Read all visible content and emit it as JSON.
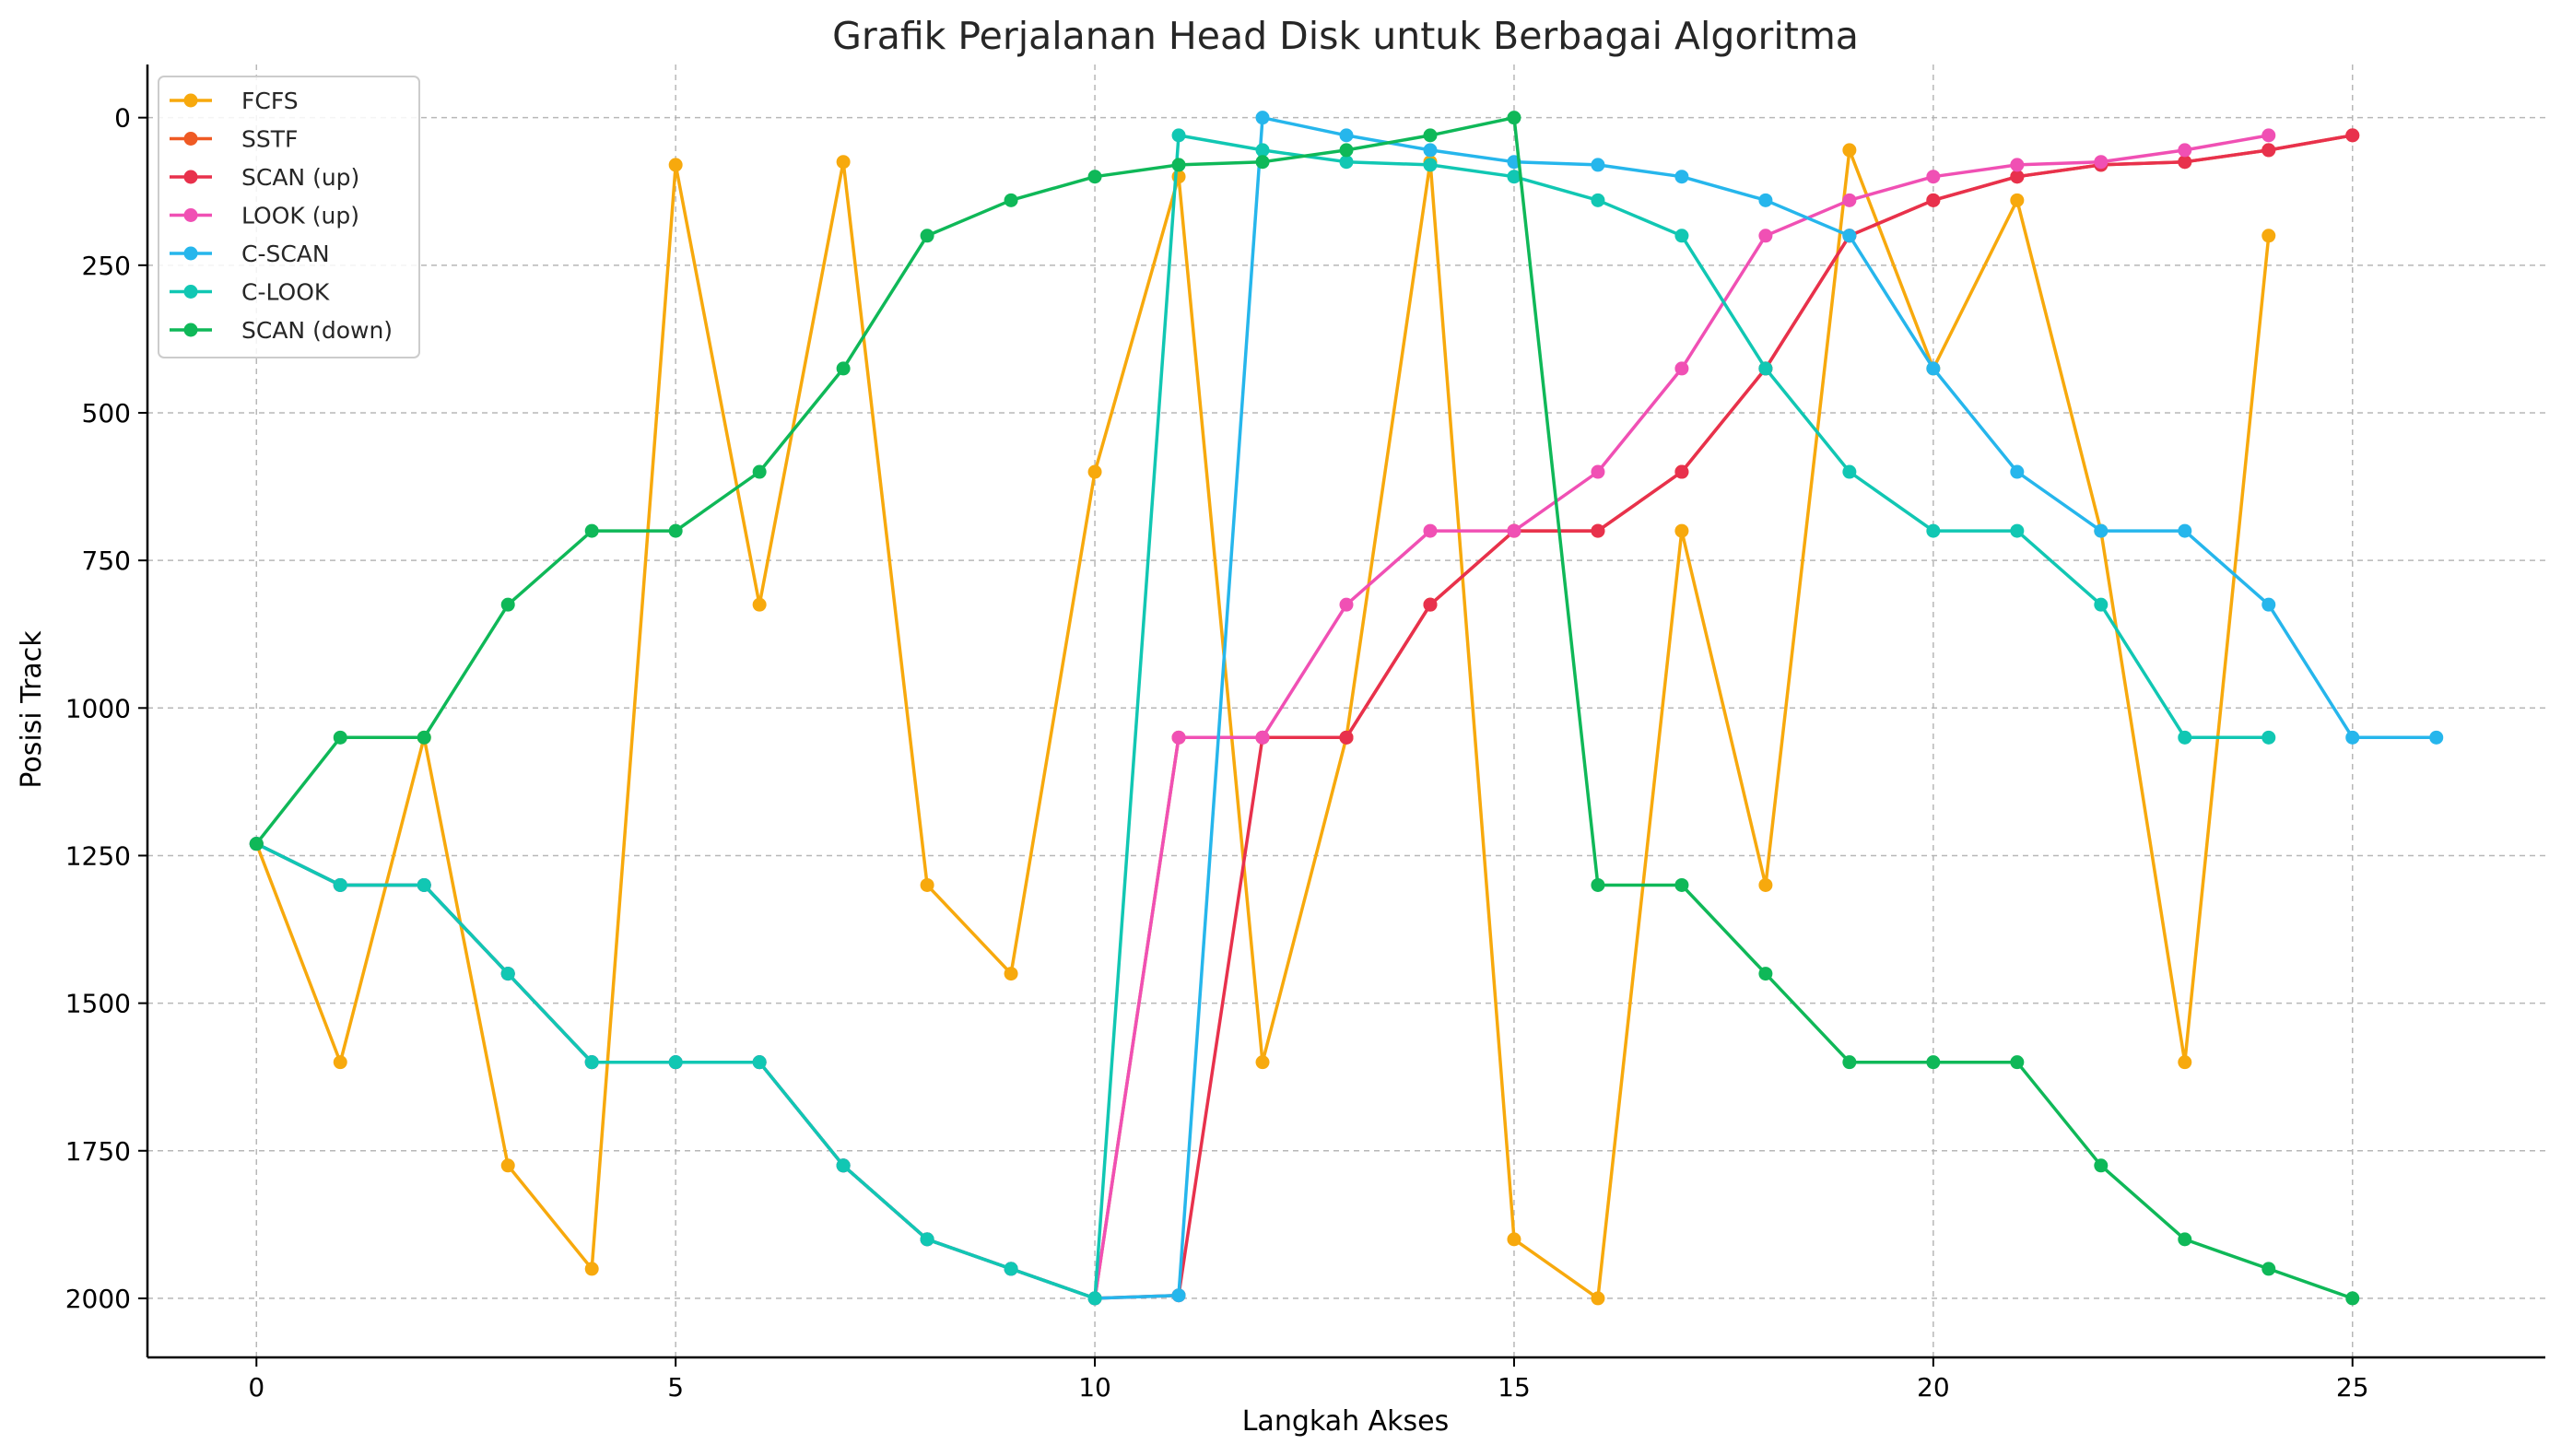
{
  "chart_data": {
    "type": "line",
    "title": "Grafik Perjalanan Head Disk untuk Berbagai Algoritma",
    "xlabel": "Langkah Akses",
    "ylabel": "Posisi Track",
    "xlim": [
      -1.3,
      27.3
    ],
    "ylim": [
      2100,
      -90
    ],
    "y_inverted": true,
    "xticks": [
      0,
      5,
      10,
      15,
      20,
      25
    ],
    "yticks": [
      0,
      250,
      500,
      750,
      1000,
      1250,
      1500,
      1750,
      2000
    ],
    "grid": true,
    "legend_position": "top-left",
    "series": [
      {
        "name": "FCFS",
        "color": "#f7a90d",
        "values": [
          1230,
          1600,
          1050,
          1775,
          1950,
          80,
          825,
          75,
          1300,
          1450,
          600,
          100,
          1600,
          1050,
          75,
          1900,
          2000,
          700,
          1300,
          55,
          425,
          140,
          700,
          1600,
          200
        ]
      },
      {
        "name": "SSTF",
        "color": "#ef5a24",
        "values": [
          1230,
          1300,
          1300,
          1450,
          1600,
          1600,
          1600,
          1775,
          1900,
          1950,
          2000,
          1050,
          1050,
          1050,
          825,
          700,
          700,
          600,
          425,
          200,
          140,
          100,
          80,
          75,
          55,
          30
        ]
      },
      {
        "name": "SCAN (up)",
        "color": "#e8314c",
        "values": [
          1230,
          1300,
          1300,
          1450,
          1600,
          1600,
          1600,
          1775,
          1900,
          1950,
          2000,
          1995,
          1050,
          1050,
          825,
          700,
          700,
          600,
          425,
          200,
          140,
          100,
          80,
          75,
          55,
          30
        ]
      },
      {
        "name": "LOOK (up)",
        "color": "#f050b4",
        "values": [
          1230,
          1300,
          1300,
          1450,
          1600,
          1600,
          1600,
          1775,
          1900,
          1950,
          2000,
          1050,
          1050,
          825,
          700,
          700,
          600,
          425,
          200,
          140,
          100,
          80,
          75,
          55,
          30
        ]
      },
      {
        "name": "C-SCAN",
        "color": "#26b6ec",
        "values": [
          1230,
          1300,
          1300,
          1450,
          1600,
          1600,
          1600,
          1775,
          1900,
          1950,
          2000,
          1995,
          0,
          30,
          55,
          75,
          80,
          100,
          140,
          200,
          425,
          600,
          700,
          700,
          825,
          1050,
          1050
        ]
      },
      {
        "name": "C-LOOK",
        "color": "#11c7b3",
        "values": [
          1230,
          1300,
          1300,
          1450,
          1600,
          1600,
          1600,
          1775,
          1900,
          1950,
          2000,
          30,
          55,
          75,
          80,
          100,
          140,
          200,
          425,
          600,
          700,
          700,
          825,
          1050,
          1050
        ]
      },
      {
        "name": "SCAN (down)",
        "color": "#0fb858",
        "values": [
          1230,
          1050,
          1050,
          825,
          700,
          700,
          600,
          425,
          200,
          140,
          100,
          80,
          75,
          55,
          30,
          0,
          1300,
          1300,
          1450,
          1600,
          1600,
          1600,
          1775,
          1900,
          1950,
          2000
        ]
      }
    ]
  }
}
